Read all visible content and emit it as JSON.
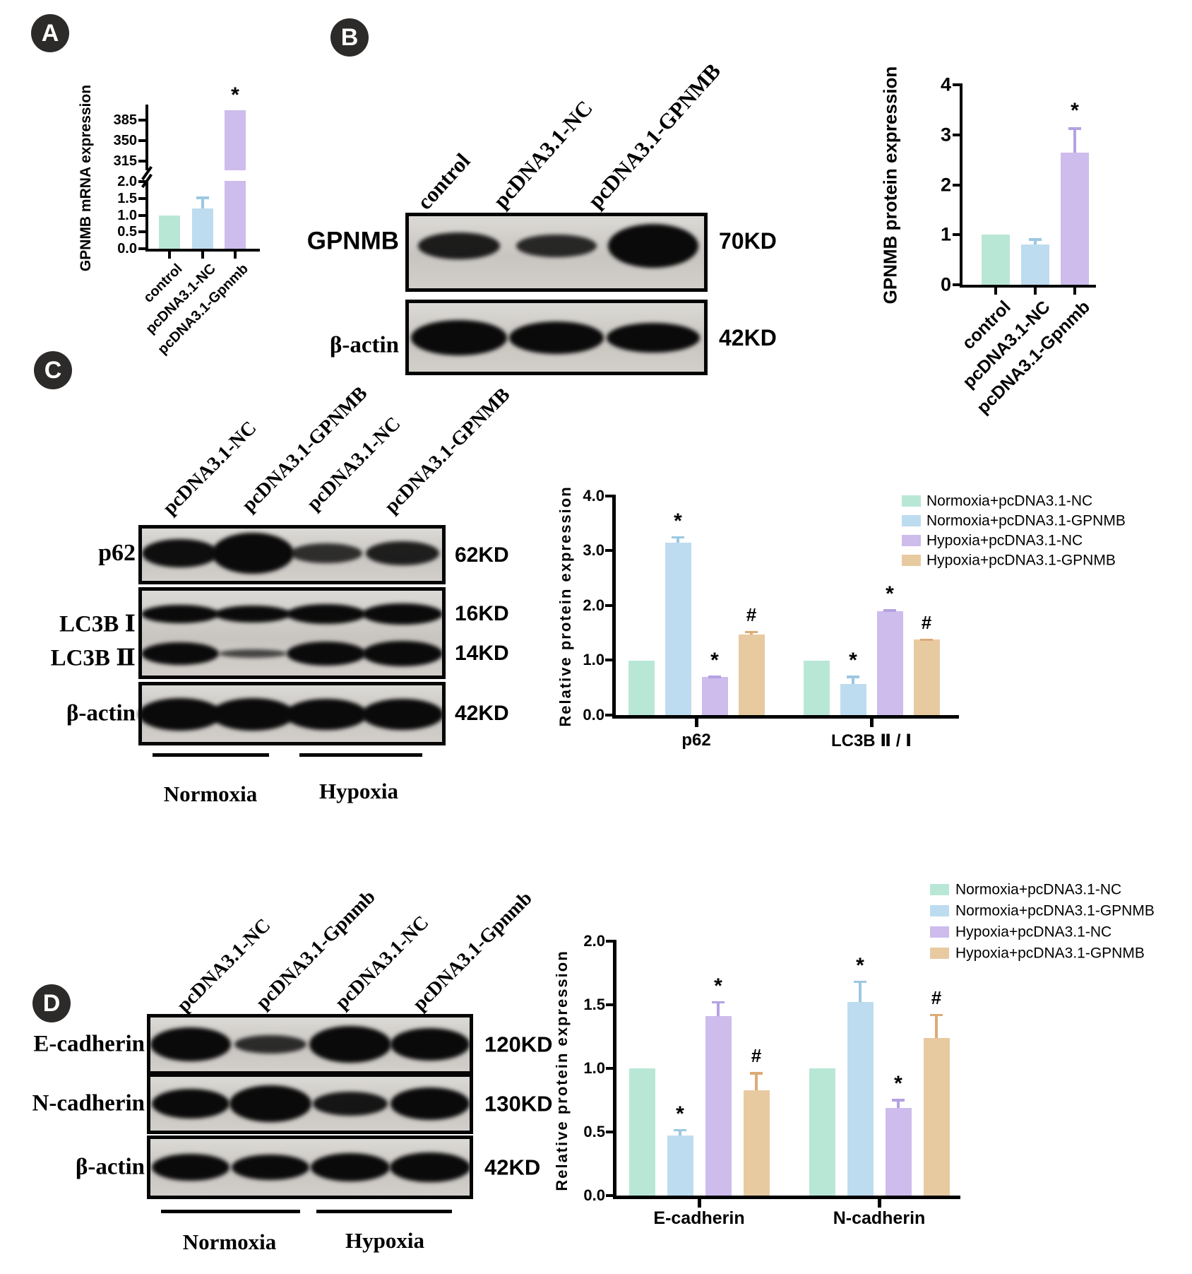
{
  "figure": {
    "panels": {
      "A": {
        "badge": "A"
      },
      "B": {
        "badge": "B",
        "blot": {
          "lane_labels": [
            "control",
            "pcDNA3.1-NC",
            "pcDNA3.1-GPNMB"
          ],
          "rows": [
            {
              "labels": [
                "GPNMB"
              ],
              "kds": [
                "70KD"
              ],
              "bands": [
                [
                  0.61,
                  0.53,
                  1.0
                ]
              ]
            },
            {
              "labels": [
                "β-actin"
              ],
              "kds": [
                "42KD"
              ],
              "bands": [
                [
                  1.0,
                  0.92,
                  0.84
                ]
              ]
            }
          ]
        }
      },
      "C": {
        "badge": "C",
        "blot": {
          "lane_labels": [
            "pcDNA3.1-NC",
            "pcDNA3.1-GPNMB",
            "pcDNA3.1-NC",
            "pcDNA3.1-GPNMB"
          ],
          "rows": [
            {
              "labels": [
                "p62"
              ],
              "kds": [
                "62KD"
              ],
              "bands": [
                [
                  0.7,
                  1.0,
                  0.48,
                  0.59
                ]
              ]
            },
            {
              "labels": [
                "LC3B Ⅰ",
                "LC3B Ⅱ"
              ],
              "kds": [
                "16KD",
                "14KD"
              ],
              "bands": [
                [
                  0.87,
                  0.8,
                  0.93,
                  1.0
                ],
                [
                  0.89,
                  0.33,
                  0.94,
                  1.0
                ]
              ]
            },
            {
              "labels": [
                "β-actin"
              ],
              "kds": [
                "42KD"
              ],
              "bands": [
                [
                  1.0,
                  1.0,
                  0.96,
                  0.96
                ]
              ]
            }
          ],
          "group_labels": [
            "Normoxia",
            "Hypoxia"
          ]
        }
      },
      "D": {
        "badge": "D",
        "blot": {
          "lane_labels": [
            "pcDNA3.1-NC",
            "pcDNA3.1-Gpnmb",
            "pcDNA3.1-NC",
            "pcDNA3.1-Gpnmb"
          ],
          "rows": [
            {
              "labels": [
                "E-cadherin"
              ],
              "kds": [
                "120KD"
              ],
              "bands": [
                [
                  0.92,
                  0.5,
                  1.0,
                  0.88
                ]
              ]
            },
            {
              "labels": [
                "N-cadherin"
              ],
              "kds": [
                "130KD"
              ],
              "bands": [
                [
                  0.81,
                  1.0,
                  0.65,
                  0.88
                ]
              ]
            },
            {
              "labels": [
                "β-actin"
              ],
              "kds": [
                "42KD"
              ],
              "bands": [
                [
                  0.9,
                  0.86,
                  0.95,
                  1.0
                ]
              ]
            }
          ],
          "group_labels": [
            "Normoxia",
            "Hypoxia"
          ]
        }
      }
    },
    "colors": {
      "series": [
        "#b9e7d6",
        "#bedcef",
        "#cdbcec",
        "#e8caa1"
      ],
      "error_bars": [
        "#8fd3b9",
        "#9cc8e2",
        "#b5a1e2",
        "#dcab77"
      ],
      "badge_bg": "#2d2a2a",
      "band": "#0a0a0a"
    }
  },
  "chart_data": [
    {
      "id": "A",
      "type": "bar",
      "ylabel": "GPNMB mRNA expression",
      "categories": [
        "control",
        "pcDNA3.1-NC",
        "pcDNA3.1-Gpnmb"
      ],
      "values": [
        1.0,
        1.2,
        400
      ],
      "errors": [
        0,
        0.35,
        0
      ],
      "markers": [
        "",
        "",
        "*"
      ],
      "axis_break": true,
      "yticks_bottom": [
        "0.0",
        "0.5",
        "1.0",
        "1.5",
        "2.0"
      ],
      "yticks_top": [
        "315",
        "350",
        "385"
      ],
      "ylim_bottom": [
        0,
        2.0
      ],
      "ylim_top": [
        315,
        385
      ],
      "grid": false
    },
    {
      "id": "B",
      "type": "bar",
      "ylabel": "GPNMB protein expression",
      "categories": [
        "control",
        "pcDNA3.1-NC",
        "pcDNA3.1-Gpnmb"
      ],
      "values": [
        1.0,
        0.8,
        2.65
      ],
      "errors": [
        0,
        0.13,
        0.5
      ],
      "markers": [
        "",
        "",
        "*"
      ],
      "yticks": [
        "0",
        "1",
        "2",
        "3",
        "4"
      ],
      "ylim": [
        0,
        4
      ],
      "grid": false
    },
    {
      "id": "C",
      "type": "bar",
      "ylabel": "Relative protein expression",
      "categories": [
        "p62",
        "LC3B Ⅱ / Ⅰ"
      ],
      "yticks": [
        "0.0",
        "1.0",
        "2.0",
        "3.0",
        "4.0"
      ],
      "ylim": [
        0,
        4
      ],
      "legend_position": "top-right",
      "grid": false,
      "series": [
        {
          "name": "Normoxia+pcDNA3.1-NC",
          "values": [
            1.0,
            1.0
          ],
          "errors": [
            0,
            0
          ],
          "markers": [
            "",
            ""
          ]
        },
        {
          "name": "Normoxia+pcDNA3.1-GPNMB",
          "values": [
            3.15,
            0.57
          ],
          "errors": [
            0.12,
            0.15
          ],
          "markers": [
            "*",
            "*"
          ]
        },
        {
          "name": "Hypoxia+pcDNA3.1-NC",
          "values": [
            0.7,
            1.9
          ],
          "errors": [
            0.02,
            0.03
          ],
          "markers": [
            "*",
            "*"
          ]
        },
        {
          "name": "Hypoxia+pcDNA3.1-GPNMB",
          "values": [
            1.47,
            1.38
          ],
          "errors": [
            0.07,
            0.02
          ],
          "markers": [
            "#",
            "#"
          ]
        }
      ]
    },
    {
      "id": "D",
      "type": "bar",
      "ylabel": "Relative protein expression",
      "categories": [
        "E-cadherin",
        "N-cadherin"
      ],
      "yticks": [
        "0.0",
        "0.5",
        "1.0",
        "1.5",
        "2.0"
      ],
      "ylim": [
        0,
        2
      ],
      "legend_position": "top-right",
      "grid": false,
      "series": [
        {
          "name": "Normoxia+pcDNA3.1-NC",
          "values": [
            1.0,
            1.0
          ],
          "errors": [
            0,
            0
          ],
          "markers": [
            "",
            ""
          ]
        },
        {
          "name": "Normoxia+pcDNA3.1-GPNMB",
          "values": [
            0.47,
            1.52
          ],
          "errors": [
            0.055,
            0.17
          ],
          "markers": [
            "*",
            "*"
          ]
        },
        {
          "name": "Hypoxia+pcDNA3.1-NC",
          "values": [
            1.41,
            0.69
          ],
          "errors": [
            0.12,
            0.07
          ],
          "markers": [
            "*",
            "*"
          ]
        },
        {
          "name": "Hypoxia+pcDNA3.1-GPNMB",
          "values": [
            0.83,
            1.24
          ],
          "errors": [
            0.14,
            0.19
          ],
          "markers": [
            "#",
            "#"
          ]
        }
      ]
    }
  ]
}
